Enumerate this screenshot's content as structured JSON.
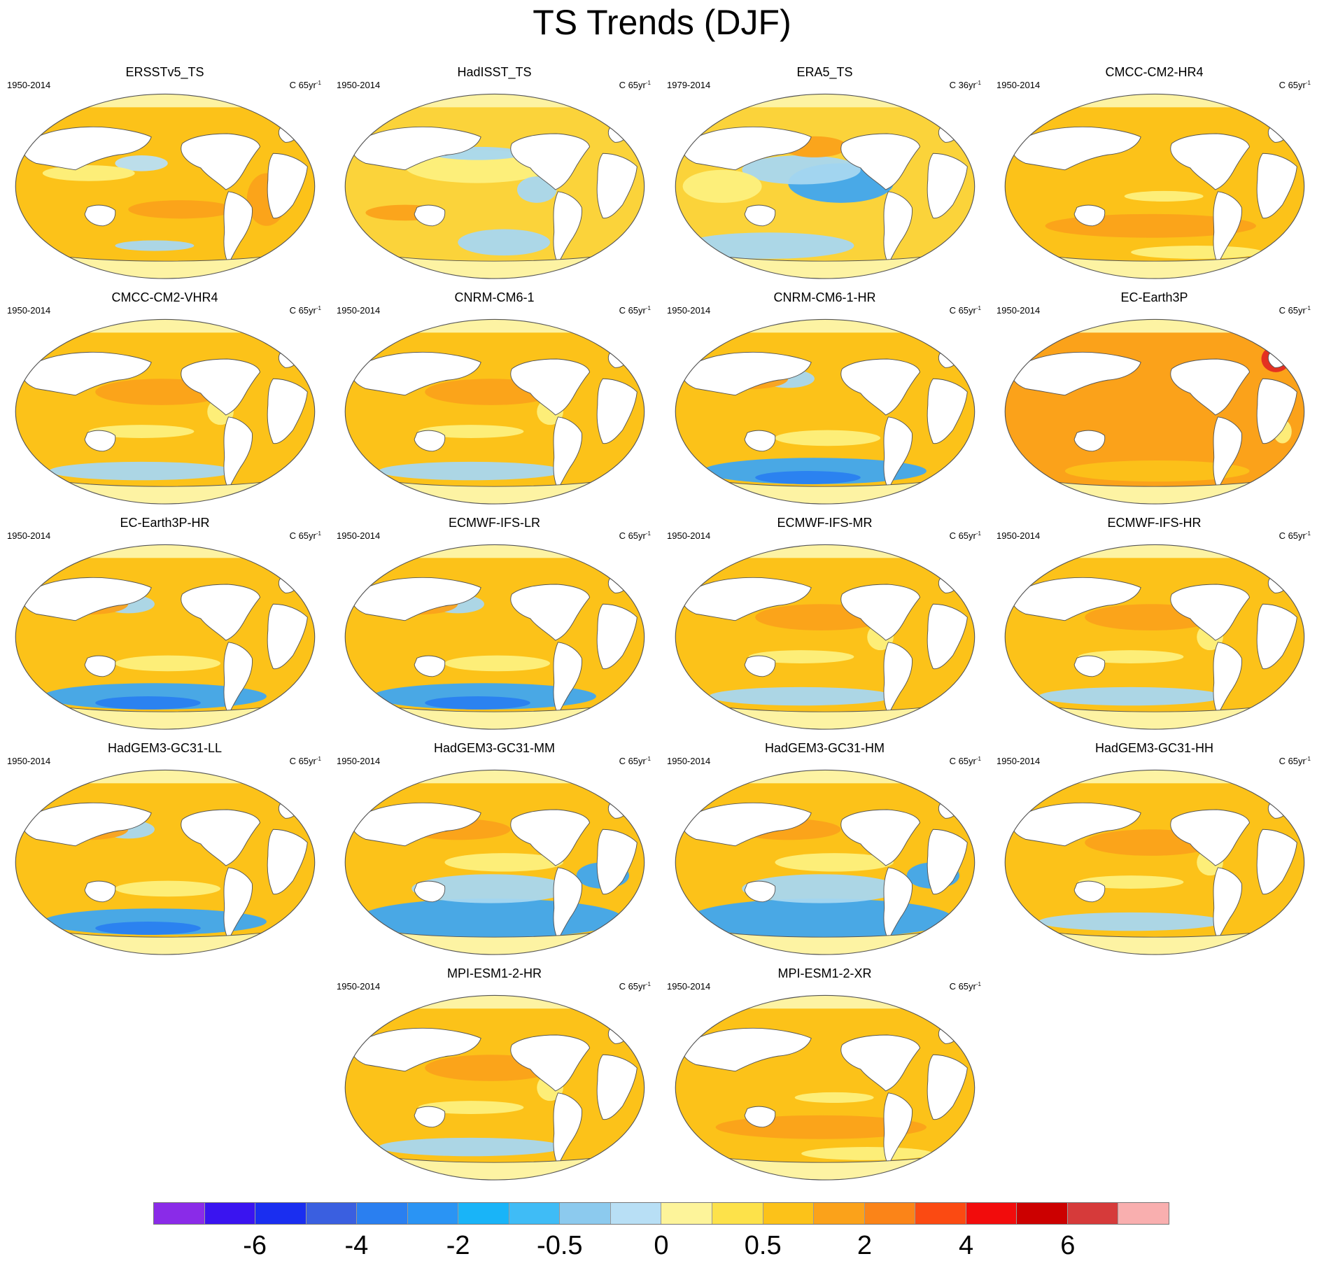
{
  "figure": {
    "title": "TS Trends (DJF)"
  },
  "palette": {
    "ocean_warm": "#fcc219",
    "ocean_mid": "#fbd33a",
    "ocean_light": "#fdf07d",
    "ocean_orange": "#fba21a",
    "ocean_cold": "#a8d7f0",
    "ocean_blue": "#3fa6f0",
    "ocean_deep_blue": "#2a7ff0",
    "ocean_red": "#e32b22",
    "land": "#ffffff",
    "ice_band": "#fdf3a3",
    "outline": "#555555"
  },
  "panels": [
    {
      "title": "ERSSTv5_TS",
      "period": "1950-2014",
      "units": "C 65yr",
      "units_exp": "-1",
      "pattern": "obs_smooth"
    },
    {
      "title": "HadISST_TS",
      "period": "1950-2014",
      "units": "C 65yr",
      "units_exp": "-1",
      "pattern": "obs_mixed"
    },
    {
      "title": "ERA5_TS",
      "period": "1979-2014",
      "units": "C 36yr",
      "units_exp": "-1",
      "pattern": "era5"
    },
    {
      "title": "CMCC-CM2-HR4",
      "period": "1950-2014",
      "units": "C 65yr",
      "units_exp": "-1",
      "pattern": "warm"
    },
    {
      "title": "CMCC-CM2-VHR4",
      "period": "1950-2014",
      "units": "C 65yr",
      "units_exp": "-1",
      "pattern": "warm_southcold"
    },
    {
      "title": "CNRM-CM6-1",
      "period": "1950-2014",
      "units": "C 65yr",
      "units_exp": "-1",
      "pattern": "warm_southcold"
    },
    {
      "title": "CNRM-CM6-1-HR",
      "period": "1950-2014",
      "units": "C 65yr",
      "units_exp": "-1",
      "pattern": "cold_south"
    },
    {
      "title": "EC-Earth3P",
      "period": "1950-2014",
      "units": "C 65yr",
      "units_exp": "-1",
      "pattern": "very_warm"
    },
    {
      "title": "EC-Earth3P-HR",
      "period": "1950-2014",
      "units": "C 65yr",
      "units_exp": "-1",
      "pattern": "cold_south"
    },
    {
      "title": "ECMWF-IFS-LR",
      "period": "1950-2014",
      "units": "C 65yr",
      "units_exp": "-1",
      "pattern": "cold_south"
    },
    {
      "title": "ECMWF-IFS-MR",
      "period": "1950-2014",
      "units": "C 65yr",
      "units_exp": "-1",
      "pattern": "warm_southcold"
    },
    {
      "title": "ECMWF-IFS-HR",
      "period": "1950-2014",
      "units": "C 65yr",
      "units_exp": "-1",
      "pattern": "warm_southcold"
    },
    {
      "title": "HadGEM3-GC31-LL",
      "period": "1950-2014",
      "units": "C 65yr",
      "units_exp": "-1",
      "pattern": "cold_south"
    },
    {
      "title": "HadGEM3-GC31-MM",
      "period": "1950-2014",
      "units": "C 65yr",
      "units_exp": "-1",
      "pattern": "cold_big"
    },
    {
      "title": "HadGEM3-GC31-HM",
      "period": "1950-2014",
      "units": "C 65yr",
      "units_exp": "-1",
      "pattern": "cold_big"
    },
    {
      "title": "HadGEM3-GC31-HH",
      "period": "1950-2014",
      "units": "C 65yr",
      "units_exp": "-1",
      "pattern": "warm_southcold"
    },
    {
      "title": "MPI-ESM1-2-HR",
      "period": "1950-2014",
      "units": "C 65yr",
      "units_exp": "-1",
      "pattern": "warm_southcold"
    },
    {
      "title": "MPI-ESM1-2-XR",
      "period": "1950-2014",
      "units": "C 65yr",
      "units_exp": "-1",
      "pattern": "warm"
    }
  ],
  "colorbar": {
    "colors": [
      "#8a2be8",
      "#3a14f0",
      "#1a2ef0",
      "#3a5fe0",
      "#2a7ff0",
      "#2a94f4",
      "#19b4f8",
      "#3fbcf6",
      "#8ccaee",
      "#b8dff5",
      "#fdf49a",
      "#fde24a",
      "#fcc219",
      "#fba21a",
      "#fb8418",
      "#fb4a12",
      "#f20c0c",
      "#cc0000",
      "#d63a3a",
      "#f9afaf"
    ],
    "labels": [
      {
        "text": "-6",
        "boundary": 2
      },
      {
        "text": "-4",
        "boundary": 4
      },
      {
        "text": "-2",
        "boundary": 6
      },
      {
        "text": "-0.5",
        "boundary": 8
      },
      {
        "text": "0",
        "boundary": 10
      },
      {
        "text": "0.5",
        "boundary": 12
      },
      {
        "text": "2",
        "boundary": 14
      },
      {
        "text": "4",
        "boundary": 16
      },
      {
        "text": "6",
        "boundary": 18
      }
    ]
  }
}
